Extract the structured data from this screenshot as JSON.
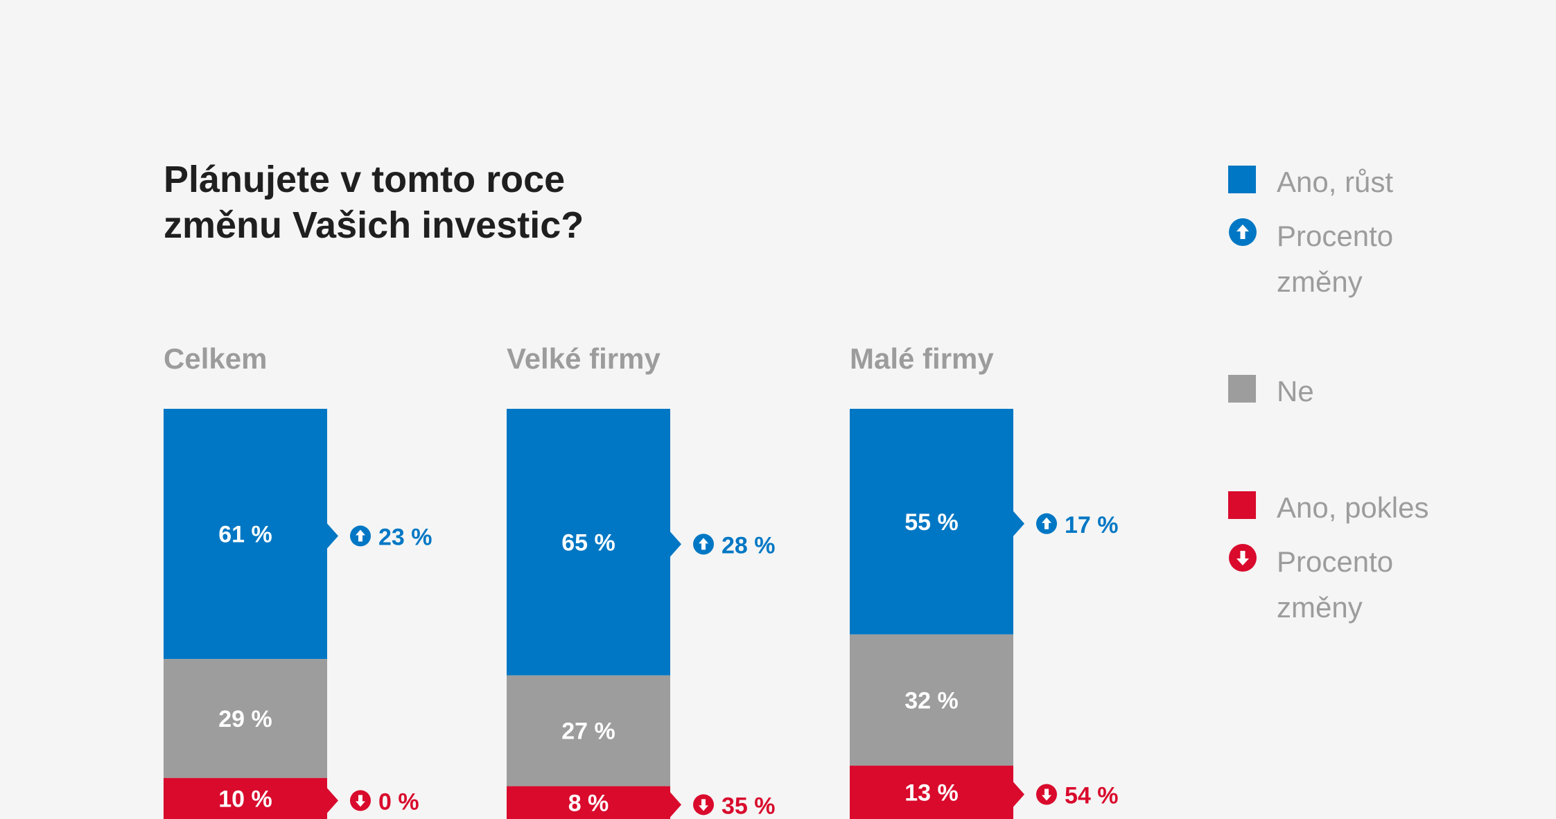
{
  "title_lines": [
    "Plánujete v tomto roce",
    "změnu Vašich investic?"
  ],
  "colors": {
    "up": "#0077c4",
    "no": "#9d9d9d",
    "down": "#d90a2c",
    "title": "#1f1f1f",
    "subtitle": "#9c9c9c",
    "background": "#f5f5f5"
  },
  "legend": {
    "up_label": "Ano, růst",
    "up_change_line1": "Procento",
    "up_change_line2": "změny",
    "no_label": "Ne",
    "down_label": "Ano, pokles",
    "down_change_line1": "Procento",
    "down_change_line2": "změny"
  },
  "chart_data": {
    "type": "bar",
    "stacked": true,
    "categories": [
      "Celkem",
      "Velké firmy",
      "Malé firmy"
    ],
    "series": [
      {
        "name": "Ano, růst",
        "values": [
          61,
          65,
          55
        ],
        "labels": [
          "61 %",
          "65 %",
          "55 %"
        ]
      },
      {
        "name": "Ne",
        "values": [
          29,
          27,
          32
        ],
        "labels": [
          "29 %",
          "27 %",
          "32 %"
        ]
      },
      {
        "name": "Ano, pokles",
        "values": [
          10,
          8,
          13
        ],
        "labels": [
          "10 %",
          "8 %",
          "13 %"
        ]
      }
    ],
    "change": {
      "up": [
        23,
        28,
        17
      ],
      "up_labels": [
        "23 %",
        "28 %",
        "17 %"
      ],
      "down": [
        0,
        35,
        54
      ],
      "down_labels": [
        "0 %",
        "35 %",
        "54 %"
      ]
    },
    "ylim": [
      0,
      100
    ]
  }
}
